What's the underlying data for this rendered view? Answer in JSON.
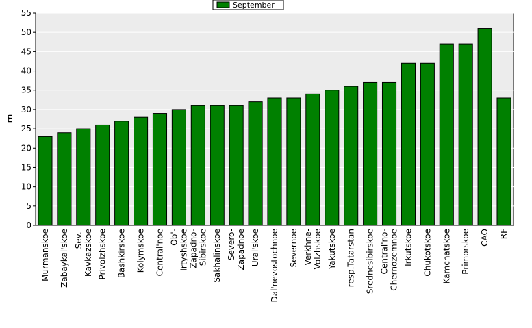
{
  "chart_data": {
    "type": "bar",
    "ylabel": "m",
    "ylim": [
      0,
      55
    ],
    "yticks": [
      0,
      5,
      10,
      15,
      20,
      25,
      30,
      35,
      40,
      45,
      50,
      55
    ],
    "grid": true,
    "legend_position": "top-center",
    "bar_color": "#008000",
    "plot_background": "#ececec",
    "categories": [
      "Murmanskoe",
      "Zabaykal'skoe",
      "Sev.-Kavkazskoe",
      "Privolzhskoe",
      "Bashkirskoe",
      "Kolymskoe",
      "Central'noe",
      "Ob'-Irtyshskoe",
      "Zapadno-Sibirskoe",
      "Sakhalinskoe",
      "Severo-Zapadnoe",
      "Ural'skoe",
      "Dal'nevostochnoe",
      "Severnoe",
      "Verkhne-Volzhskoe",
      "Yakutskoe",
      "resp.Tatarstan",
      "Srednesibirskoe",
      "Central'no-Chernozemnoe",
      "Irkutskoe",
      "Chukotskoe",
      "Kamchatskoe",
      "Primorskoe",
      "CAO",
      "RF"
    ],
    "category_lines": [
      [
        "Murmanskoe"
      ],
      [
        "Zabaykal'skoe"
      ],
      [
        "Sev.-",
        "Kavkazskoe"
      ],
      [
        "Privolzhskoe"
      ],
      [
        "Bashkirskoe"
      ],
      [
        "Kolymskoe"
      ],
      [
        "Central'noe"
      ],
      [
        "Ob'-",
        "Irtyshskoe"
      ],
      [
        "Zapadno-",
        "Sibirskoe"
      ],
      [
        "Sakhalinskoe"
      ],
      [
        "Severo-",
        "Zapadnoe"
      ],
      [
        "Ural'skoe"
      ],
      [
        "Dal'nevostochnoe"
      ],
      [
        "Severnoe"
      ],
      [
        "Verkhne-",
        "Volzhskoe"
      ],
      [
        "Yakutskoe"
      ],
      [
        "resp.Tatarstan"
      ],
      [
        "Srednesibirskoe"
      ],
      [
        "Central'no-",
        "Chernozemnoe"
      ],
      [
        "Irkutskoe"
      ],
      [
        "Chukotskoe"
      ],
      [
        "Kamchatskoe"
      ],
      [
        "Primorskoe"
      ],
      [
        "CAO"
      ],
      [
        "RF"
      ]
    ],
    "series": [
      {
        "name": "September",
        "values": [
          23,
          24,
          25,
          26,
          27,
          28,
          29,
          30,
          31,
          31,
          31,
          32,
          33,
          33,
          34,
          35,
          36,
          37,
          37,
          42,
          42,
          47,
          47,
          51,
          33
        ]
      }
    ]
  }
}
